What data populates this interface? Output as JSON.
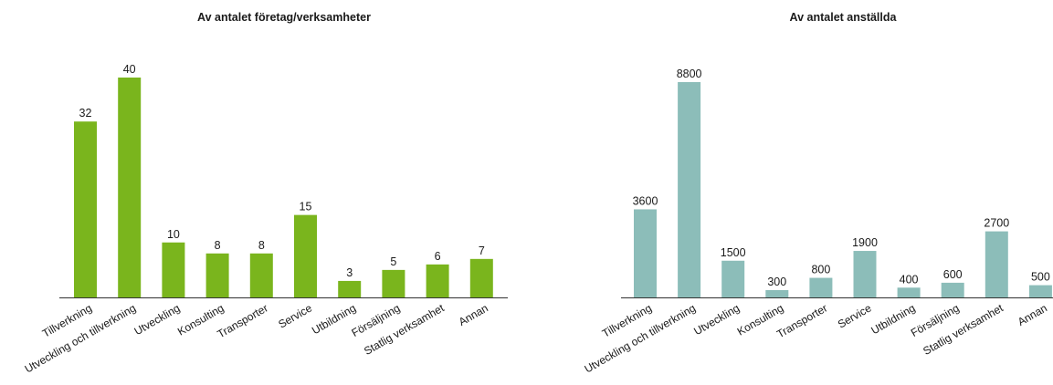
{
  "chart_data": [
    {
      "type": "bar",
      "title": "Av antalet företag/verksamheter",
      "categories": [
        "Tillverkning",
        "Utveckling och tillverkning",
        "Utveckling",
        "Konsulting",
        "Transporter",
        "Service",
        "Utbildning",
        "Försäljning",
        "Statlig verksamhet",
        "Annan"
      ],
      "values": [
        32,
        40,
        10,
        8,
        8,
        15,
        3,
        5,
        6,
        7
      ],
      "color": "#7ab51d",
      "xlabel": "",
      "ylabel": "",
      "ylim": [
        0,
        40
      ],
      "grid": false,
      "legend": "none"
    },
    {
      "type": "bar",
      "title": "Av antalet anställda",
      "categories": [
        "Tillverkning",
        "Utveckling och tillverkning",
        "Utveckling",
        "Konsulting",
        "Transporter",
        "Service",
        "Utbildning",
        "Försäljning",
        "Statlig verksamhet",
        "Annan"
      ],
      "values": [
        3600,
        8800,
        1500,
        300,
        800,
        1900,
        400,
        600,
        2700,
        500
      ],
      "color": "#8cbdb9",
      "xlabel": "",
      "ylabel": "",
      "ylim": [
        0,
        8800
      ],
      "grid": false,
      "legend": "none"
    }
  ]
}
